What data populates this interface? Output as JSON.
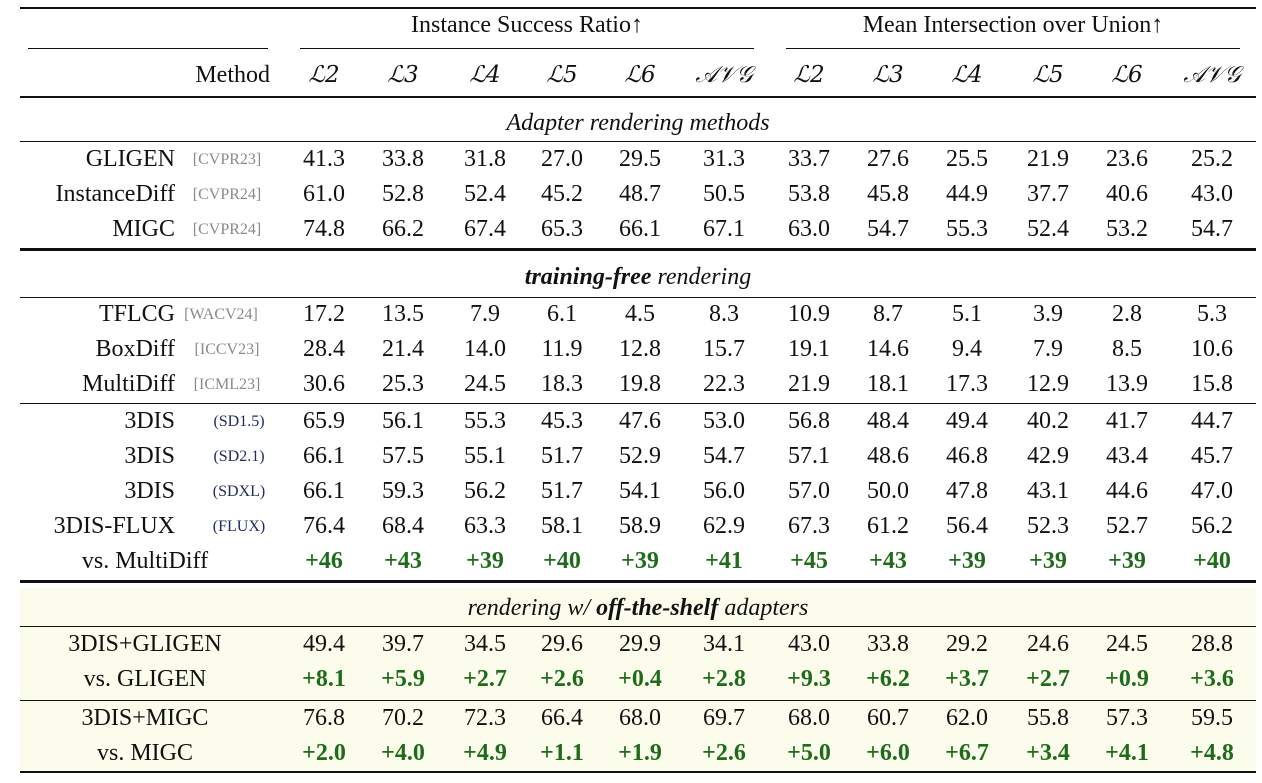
{
  "header": {
    "group1": "Instance Success Ratio↑",
    "group2": "Mean Intersection over Union↑",
    "method_label": "Method",
    "columns": [
      "ℒ2",
      "ℒ3",
      "ℒ4",
      "ℒ5",
      "ℒ6",
      "𝒜𝒱𝒢",
      "ℒ2",
      "ℒ3",
      "ℒ4",
      "ℒ5",
      "ℒ6",
      "𝒜𝒱𝒢"
    ]
  },
  "sections": {
    "adapter": "Adapter rendering methods",
    "training_free_bold": "training-free",
    "training_free_rest": " rendering",
    "offshelf_pre": "rendering w/ ",
    "offshelf_bold": "off-the-shelf",
    "offshelf_post": " adapters"
  },
  "colors": {
    "improvement": "#1e6b19",
    "venue": "#8a8a8a",
    "model": "#1f2a66",
    "shade": "#fbfcec"
  },
  "rows": [
    {
      "method": "GLIGEN",
      "tag": "[CVPR23]",
      "tag_type": "venue",
      "values": [
        "41.3",
        "33.8",
        "31.8",
        "27.0",
        "29.5",
        "31.3",
        "33.7",
        "27.6",
        "25.5",
        "21.9",
        "23.6",
        "25.2"
      ]
    },
    {
      "method": "InstanceDiff",
      "tag": "[CVPR24]",
      "tag_type": "venue",
      "values": [
        "61.0",
        "52.8",
        "52.4",
        "45.2",
        "48.7",
        "50.5",
        "53.8",
        "45.8",
        "44.9",
        "37.7",
        "40.6",
        "43.0"
      ]
    },
    {
      "method": "MIGC",
      "tag": "[CVPR24]",
      "tag_type": "venue",
      "values": [
        "74.8",
        "66.2",
        "67.4",
        "65.3",
        "66.1",
        "67.1",
        "63.0",
        "54.7",
        "55.3",
        "52.4",
        "53.2",
        "54.7"
      ]
    },
    {
      "method": "TFLCG",
      "tag": "[WACV24]",
      "tag_type": "venue",
      "values": [
        "17.2",
        "13.5",
        "7.9",
        "6.1",
        "4.5",
        "8.3",
        "10.9",
        "8.7",
        "5.1",
        "3.9",
        "2.8",
        "5.3"
      ]
    },
    {
      "method": "BoxDiff",
      "tag": "[ICCV23]",
      "tag_type": "venue",
      "values": [
        "28.4",
        "21.4",
        "14.0",
        "11.9",
        "12.8",
        "15.7",
        "19.1",
        "14.6",
        "9.4",
        "7.9",
        "8.5",
        "10.6"
      ]
    },
    {
      "method": "MultiDiff",
      "tag": "[ICML23]",
      "tag_type": "venue",
      "values": [
        "30.6",
        "25.3",
        "24.5",
        "18.3",
        "19.8",
        "22.3",
        "21.9",
        "18.1",
        "17.3",
        "12.9",
        "13.9",
        "15.8"
      ]
    },
    {
      "method": "3DIS",
      "tag": "(SD1.5)",
      "tag_type": "model",
      "values": [
        "65.9",
        "56.1",
        "55.3",
        "45.3",
        "47.6",
        "53.0",
        "56.8",
        "48.4",
        "49.4",
        "40.2",
        "41.7",
        "44.7"
      ]
    },
    {
      "method": "3DIS",
      "tag": "(SD2.1)",
      "tag_type": "model",
      "values": [
        "66.1",
        "57.5",
        "55.1",
        "51.7",
        "52.9",
        "54.7",
        "57.1",
        "48.6",
        "46.8",
        "42.9",
        "43.4",
        "45.7"
      ]
    },
    {
      "method": "3DIS",
      "tag": "(SDXL)",
      "tag_type": "model",
      "values": [
        "66.1",
        "59.3",
        "56.2",
        "51.7",
        "54.1",
        "56.0",
        "57.0",
        "50.0",
        "47.8",
        "43.1",
        "44.6",
        "47.0"
      ]
    },
    {
      "method": "3DIS-FLUX",
      "tag": "(FLUX)",
      "tag_type": "model",
      "values": [
        "76.4",
        "68.4",
        "63.3",
        "58.1",
        "58.9",
        "62.9",
        "67.3",
        "61.2",
        "56.4",
        "52.3",
        "52.7",
        "56.2"
      ]
    },
    {
      "method": "vs. MultiDiff",
      "tag": "",
      "tag_type": "diff",
      "values": [
        "+46",
        "+43",
        "+39",
        "+40",
        "+39",
        "+41",
        "+45",
        "+43",
        "+39",
        "+39",
        "+39",
        "+40"
      ]
    },
    {
      "method": "3DIS+GLIGEN",
      "tag": "",
      "tag_type": "none",
      "values": [
        "49.4",
        "39.7",
        "34.5",
        "29.6",
        "29.9",
        "34.1",
        "43.0",
        "33.8",
        "29.2",
        "24.6",
        "24.5",
        "28.8"
      ]
    },
    {
      "method": "vs. GLIGEN",
      "tag": "",
      "tag_type": "diff",
      "values": [
        "+8.1",
        "+5.9",
        "+2.7",
        "+2.6",
        "+0.4",
        "+2.8",
        "+9.3",
        "+6.2",
        "+3.7",
        "+2.7",
        "+0.9",
        "+3.6"
      ]
    },
    {
      "method": "3DIS+MIGC",
      "tag": "",
      "tag_type": "none",
      "values": [
        "76.8",
        "70.2",
        "72.3",
        "66.4",
        "68.0",
        "69.7",
        "68.0",
        "60.7",
        "62.0",
        "55.8",
        "57.3",
        "59.5"
      ]
    },
    {
      "method": "vs. MIGC",
      "tag": "",
      "tag_type": "diff",
      "values": [
        "+2.0",
        "+4.0",
        "+4.9",
        "+1.1",
        "+1.9",
        "+2.6",
        "+5.0",
        "+6.0",
        "+6.7",
        "+3.4",
        "+4.1",
        "+4.8"
      ]
    }
  ]
}
